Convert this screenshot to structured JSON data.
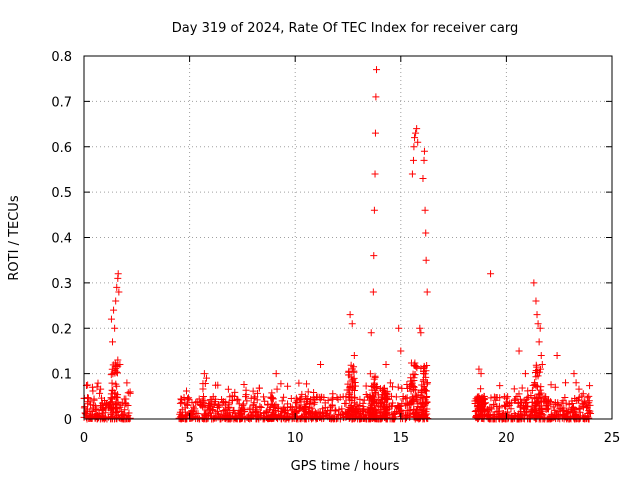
{
  "chart_data": {
    "type": "scatter",
    "title": "Day 319 of 2024, Rate Of TEC Index for receiver carg",
    "xlabel": "GPS time / hours",
    "ylabel": "ROTI / TECUs",
    "xlim": [
      0,
      25
    ],
    "ylim": [
      0,
      0.8
    ],
    "xticks": [
      0,
      5,
      10,
      15,
      20,
      25
    ],
    "xtick_labels": [
      "0",
      "5",
      "10",
      "15",
      "20",
      "25"
    ],
    "yticks": [
      0,
      0.1,
      0.2,
      0.3,
      0.4,
      0.5,
      0.6,
      0.7,
      0.8
    ],
    "ytick_labels": [
      "0",
      "0.1",
      "0.2",
      "0.3",
      "0.4",
      "0.5",
      "0.6",
      "0.7",
      "0.8"
    ],
    "grid": true,
    "marker": "+",
    "color": "#ff0000",
    "series": [
      {
        "name": "ROTI",
        "note": "dense background noise (ROTI 0-0.05) covers 0-2.2 h, 4.5-16.3 h and 18.5-24 h",
        "x": [
          0.4,
          1.3,
          1.35,
          1.4,
          1.45,
          1.5,
          1.55,
          1.6,
          1.62,
          1.65,
          1.7,
          5.7,
          5.8,
          9.1,
          11.2,
          12.6,
          12.7,
          12.8,
          13.6,
          13.7,
          13.72,
          13.75,
          13.78,
          13.8,
          13.82,
          13.85,
          14.3,
          14.9,
          15.0,
          15.55,
          15.6,
          15.62,
          15.65,
          15.7,
          15.75,
          15.8,
          15.9,
          15.95,
          16.05,
          16.1,
          16.12,
          16.15,
          16.18,
          16.2,
          16.25,
          18.7,
          18.8,
          19.25,
          20.6,
          20.9,
          21.3,
          21.4,
          21.45,
          21.5,
          21.55,
          21.6,
          21.65,
          21.7,
          22.4,
          22.8,
          23.2,
          23.3,
          23.9
        ],
        "y": [
          0.07,
          0.22,
          0.17,
          0.24,
          0.2,
          0.26,
          0.29,
          0.31,
          0.32,
          0.28,
          0.12,
          0.1,
          0.09,
          0.1,
          0.12,
          0.23,
          0.21,
          0.14,
          0.19,
          0.28,
          0.36,
          0.46,
          0.54,
          0.63,
          0.71,
          0.77,
          0.12,
          0.2,
          0.15,
          0.54,
          0.57,
          0.6,
          0.62,
          0.63,
          0.64,
          0.61,
          0.2,
          0.19,
          0.53,
          0.57,
          0.59,
          0.46,
          0.41,
          0.35,
          0.28,
          0.11,
          0.1,
          0.32,
          0.15,
          0.1,
          0.3,
          0.26,
          0.23,
          0.21,
          0.17,
          0.2,
          0.14,
          0.12,
          0.14,
          0.08,
          0.1,
          0.08,
          0.05
        ]
      }
    ],
    "noise_segments": [
      [
        0.0,
        2.2
      ],
      [
        4.5,
        16.3
      ],
      [
        18.5,
        24.0
      ]
    ]
  }
}
